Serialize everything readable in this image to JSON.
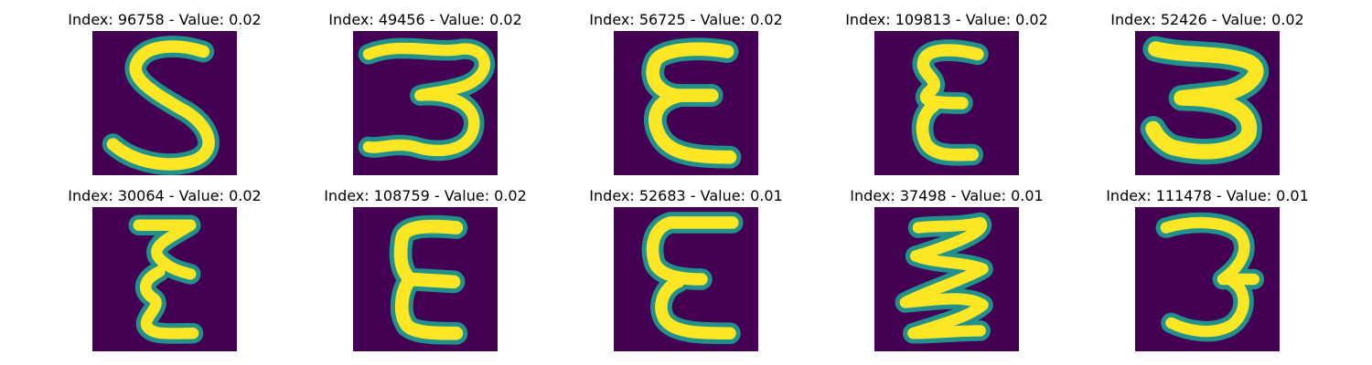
{
  "panels": [
    {
      "title": "Index: 96758 - Value: 0.02"
    },
    {
      "title": "Index: 49456 - Value: 0.02"
    },
    {
      "title": "Index: 56725 - Value: 0.02"
    },
    {
      "title": "Index: 109813 - Value: 0.02"
    },
    {
      "title": "Index: 52426 - Value: 0.02"
    },
    {
      "title": "Index: 30064 - Value: 0.02"
    },
    {
      "title": "Index: 108759 - Value: 0.02"
    },
    {
      "title": "Index: 52683 - Value: 0.01"
    },
    {
      "title": "Index: 37498 - Value: 0.01"
    },
    {
      "title": "Index: 111478 - Value: 0.01"
    }
  ],
  "colors": {
    "background": "#440154",
    "stroke_outer": "#21918c",
    "stroke_inner": "#fde725"
  },
  "glyphs": [
    "5-glyph",
    "3-glyph",
    "epsilon-glyph",
    "epsilon-glyph",
    "3-glyph",
    "epsilon-glyph",
    "epsilon-glyph",
    "epsilon-glyph",
    "zigzag-glyph",
    "3-glyph"
  ]
}
